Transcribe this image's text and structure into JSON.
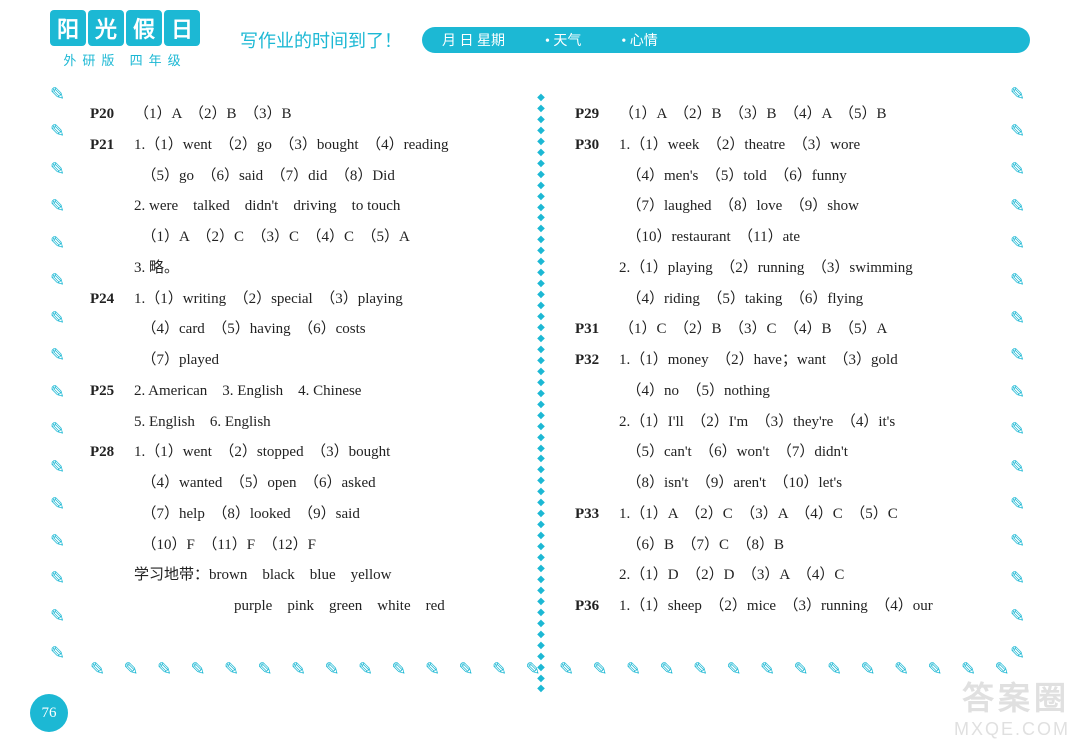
{
  "header": {
    "logo_chars": [
      "阳",
      "光",
      "假",
      "日"
    ],
    "logo_sub": "外研版 四年级",
    "prompt": "写作业的时间到了！",
    "pill_items": [
      "月    日    星期",
      "•  天气",
      "•  心情"
    ]
  },
  "page_number": "76",
  "watermark": {
    "line1": "答案圈",
    "line2": "MXQE.COM"
  },
  "left_col": [
    {
      "p": "P20",
      "text": "（1）A　（2）B　（3）B"
    },
    {
      "p": "P21",
      "text": "1.（1）went　（2）go　（3）bought　（4）reading"
    },
    {
      "p": "",
      "text": "　（5）go　（6）said　（7）did　（8）Did",
      "indent": 1
    },
    {
      "p": "",
      "text": "2. were　talked　didn't　driving　to touch",
      "indent": 1
    },
    {
      "p": "",
      "text": "　（1）A　（2）C　（3）C　（4）C　（5）A",
      "indent": 1
    },
    {
      "p": "",
      "text": "3. 略。",
      "indent": 1
    },
    {
      "p": "P24",
      "text": "1.（1）writing　（2）special　（3）playing"
    },
    {
      "p": "",
      "text": "　（4）card　（5）having　（6）costs",
      "indent": 1
    },
    {
      "p": "",
      "text": "　（7）played",
      "indent": 1
    },
    {
      "p": "P25",
      "text": "2. American　3. English　4. Chinese"
    },
    {
      "p": "",
      "text": "5. English　6. English",
      "indent": 1
    },
    {
      "p": "P28",
      "text": "1.（1）went　（2）stopped　（3）bought"
    },
    {
      "p": "",
      "text": "　（4）wanted　（5）open　（6）asked",
      "indent": 1
    },
    {
      "p": "",
      "text": "　（7）help　（8）looked　（9）said",
      "indent": 1
    },
    {
      "p": "",
      "text": "　（10）F　（11）F　（12）F",
      "indent": 1
    },
    {
      "p": "",
      "text": "学习地带：brown　black　blue　yellow",
      "indent": 1
    },
    {
      "p": "",
      "text": "purple　pink　green　white　red",
      "indent": 2
    }
  ],
  "right_col": [
    {
      "p": "P29",
      "text": "（1）A　（2）B　（3）B　（4）A　（5）B"
    },
    {
      "p": "P30",
      "text": "1.（1）week　（2）theatre　（3）wore"
    },
    {
      "p": "",
      "text": "　（4）men's　（5）told　（6）funny",
      "indent": 1
    },
    {
      "p": "",
      "text": "　（7）laughed　（8）love　（9）show",
      "indent": 1
    },
    {
      "p": "",
      "text": "　（10）restaurant　（11）ate",
      "indent": 1
    },
    {
      "p": "",
      "text": "2.（1）playing　（2）running　（3）swimming",
      "indent": 1
    },
    {
      "p": "",
      "text": "　（4）riding　（5）taking　（6）flying",
      "indent": 1
    },
    {
      "p": "P31",
      "text": "（1）C　（2）B　（3）C　（4）B　（5）A"
    },
    {
      "p": "P32",
      "text": "1.（1）money　（2）have；want　（3）gold"
    },
    {
      "p": "",
      "text": "　（4）no　（5）nothing",
      "indent": 1
    },
    {
      "p": "",
      "text": "2.（1）I'll　（2）I'm　（3）they're　（4）it's",
      "indent": 1
    },
    {
      "p": "",
      "text": "　（5）can't　（6）won't　（7）didn't",
      "indent": 1
    },
    {
      "p": "",
      "text": "　（8）isn't　（9）aren't　（10）let's",
      "indent": 1
    },
    {
      "p": "P33",
      "text": "1.（1）A　（2）C　（3）A　（4）C　（5）C"
    },
    {
      "p": "",
      "text": "　（6）B　（7）C　（8）B",
      "indent": 1
    },
    {
      "p": "",
      "text": "2.（1）D　（2）D　（3）A　（4）C",
      "indent": 1
    },
    {
      "p": "P36",
      "text": "1.（1）sheep　（2）mice　（3）running　（4）our"
    }
  ],
  "colors": {
    "accent": "#1cb8d4",
    "text": "#222222",
    "bg": "#ffffff"
  }
}
